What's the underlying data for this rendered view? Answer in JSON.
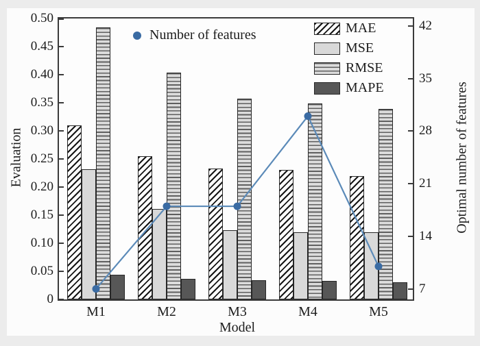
{
  "chart_data": {
    "type": "bar",
    "categories": [
      "M1",
      "M2",
      "M3",
      "M4",
      "M5"
    ],
    "series": [
      {
        "name": "MAE",
        "axis": "left",
        "style": "diagonal-hatch",
        "values": [
          0.31,
          0.255,
          0.233,
          0.23,
          0.219
        ]
      },
      {
        "name": "MSE",
        "axis": "left",
        "style": "solid-lightgray",
        "values": [
          0.232,
          0.161,
          0.123,
          0.12,
          0.12
        ]
      },
      {
        "name": "RMSE",
        "axis": "left",
        "style": "horizontal-stripes",
        "values": [
          0.484,
          0.404,
          0.357,
          0.349,
          0.339
        ]
      },
      {
        "name": "MAPE",
        "axis": "left",
        "style": "solid-darkgray",
        "values": [
          0.044,
          0.037,
          0.034,
          0.033,
          0.031
        ]
      }
    ],
    "line_series": {
      "name": "Number of features",
      "type": "line",
      "axis": "right",
      "values": [
        7,
        18,
        18,
        30,
        10
      ]
    },
    "xlabel": "Model",
    "ylabel_left": "Evaluation",
    "ylabel_right": "Optimal number of features",
    "left_axis": {
      "min": 0,
      "max": 0.5,
      "tick_labels": [
        "0",
        "0.05",
        "0.10",
        "0.15",
        "0.20",
        "0.25",
        "0.30",
        "0.35",
        "0.40",
        "0.45",
        "0.50"
      ],
      "tick_values": [
        0,
        0.05,
        0.1,
        0.15,
        0.2,
        0.25,
        0.3,
        0.35,
        0.4,
        0.45,
        0.5
      ]
    },
    "right_axis": {
      "min": 5.6,
      "max": 43.0,
      "tick_labels": [
        "7",
        "14",
        "21",
        "28",
        "35",
        "42"
      ],
      "tick_values": [
        7,
        14,
        21,
        28,
        35,
        42
      ]
    },
    "legend_position": "top-right",
    "grid": "off"
  },
  "colors": {
    "line": "#5b8ab8",
    "dot": "#3a6ba3",
    "spine": "#3a3a3a",
    "bar_border": "#262626",
    "mse_fill": "#d9d9d9",
    "mape_fill": "#575757",
    "page_background": "#ececec",
    "figure_background": "#fcfcfc"
  }
}
